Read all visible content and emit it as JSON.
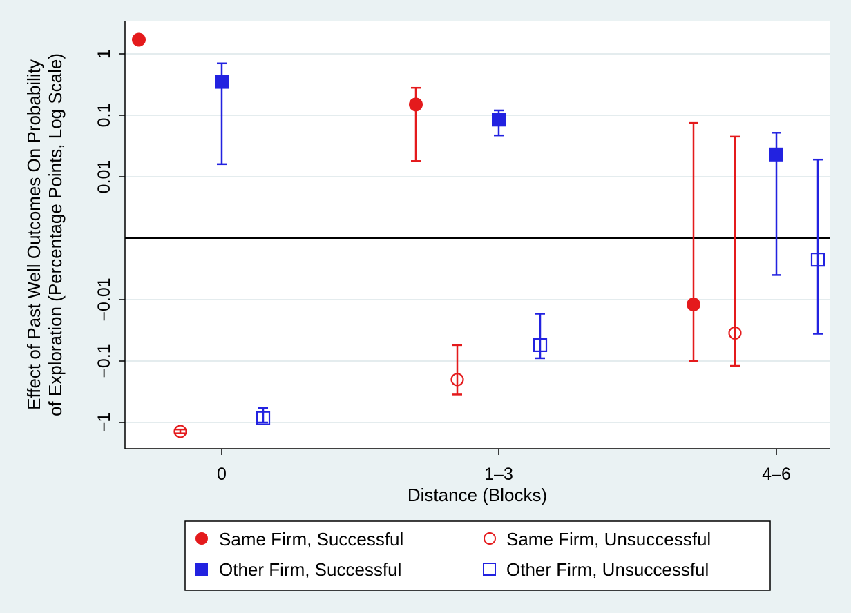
{
  "chart_data": {
    "type": "scatter",
    "subtype": "point estimates with 95% confidence intervals",
    "xlabel": "Distance (Blocks)",
    "ylabel_lines": [
      "Effect of Past Well Outcomes On Probability",
      "of Exploration (Percentage Points, Log Scale)"
    ],
    "y_scale": "symmetric log",
    "y_tick_values": [
      1,
      0.1,
      0.01,
      -0.01,
      -0.1,
      -1
    ],
    "y_tick_labels": [
      "1",
      "0.1",
      "0.01",
      "−0.01",
      "−0.1",
      "−1"
    ],
    "x_categories": [
      "0",
      "1–3",
      "4–6"
    ],
    "zero_line": true,
    "grid": "horizontal",
    "legend_position": "bottom",
    "colors": {
      "red": "#e41a1c",
      "blue": "#2222e0",
      "background": "#eaf2f3",
      "plot_bg": "#ffffff"
    },
    "series": [
      {
        "name": "Same Firm, Successful",
        "color": "#e41a1c",
        "marker": "circle",
        "filled": true,
        "points": [
          {
            "category": "0",
            "value": 1.7,
            "ci": null
          },
          {
            "category": "1–3",
            "value": 0.15,
            "ci": [
              0.018,
              0.28
            ]
          },
          {
            "category": "4–6",
            "value": -0.012,
            "ci": [
              -0.1,
              0.075
            ]
          }
        ]
      },
      {
        "name": "Same Firm, Unsuccessful",
        "color": "#e41a1c",
        "marker": "circle",
        "filled": false,
        "points": [
          {
            "category": "0",
            "value": -1.4,
            "ci": [
              -1.5,
              -1.3
            ]
          },
          {
            "category": "1–3",
            "value": -0.2,
            "ci": [
              -0.35,
              -0.055
            ]
          },
          {
            "category": "4–6",
            "value": -0.035,
            "ci": [
              -0.12,
              0.045
            ]
          }
        ]
      },
      {
        "name": "Other Firm, Successful",
        "color": "#2222e0",
        "marker": "square",
        "filled": true,
        "points": [
          {
            "category": "0",
            "value": 0.35,
            "ci": [
              0.016,
              0.7
            ]
          },
          {
            "category": "1–3",
            "value": 0.085,
            "ci": [
              0.047,
              0.12
            ]
          },
          {
            "category": "4–6",
            "value": 0.023,
            "ci": [
              -0.006,
              0.052
            ]
          }
        ]
      },
      {
        "name": "Other Firm, Unsuccessful",
        "color": "#2222e0",
        "marker": "square",
        "filled": false,
        "points": [
          {
            "category": "0",
            "value": -0.85,
            "ci": [
              -1.0,
              -0.58
            ]
          },
          {
            "category": "1–3",
            "value": -0.055,
            "ci": [
              -0.09,
              -0.017
            ]
          },
          {
            "category": "4–6",
            "value": -0.0035,
            "ci": [
              -0.036,
              0.019
            ]
          }
        ]
      }
    ]
  }
}
